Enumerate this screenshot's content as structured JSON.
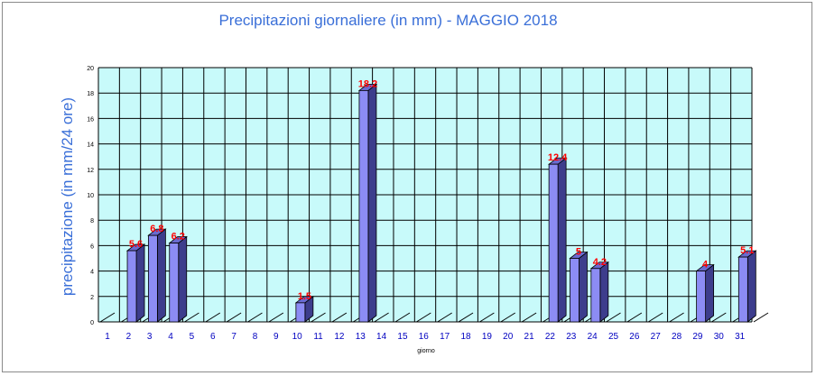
{
  "chart_data": {
    "type": "bar",
    "title": "Precipitazioni giornaliere (in mm) - MAGGIO 2018",
    "xlabel": "giorno",
    "ylabel": "precipitazione (in mm/24 ore)",
    "ylim": [
      0,
      20
    ],
    "yticks": [
      "0",
      "2",
      "4",
      "6",
      "8",
      "10",
      "12",
      "14",
      "16",
      "18",
      "20"
    ],
    "categories": [
      "1",
      "2",
      "3",
      "4",
      "5",
      "6",
      "7",
      "8",
      "9",
      "10",
      "11",
      "12",
      "13",
      "14",
      "15",
      "16",
      "17",
      "18",
      "19",
      "20",
      "21",
      "22",
      "23",
      "24",
      "25",
      "26",
      "27",
      "28",
      "29",
      "30",
      "31"
    ],
    "values": [
      null,
      5.6,
      6.8,
      6.2,
      null,
      null,
      null,
      null,
      null,
      1.5,
      null,
      null,
      18.2,
      null,
      null,
      null,
      null,
      null,
      null,
      null,
      null,
      12.4,
      5,
      4.2,
      null,
      null,
      null,
      null,
      4,
      null,
      5.1
    ],
    "value_labels": [
      "",
      "5.6",
      "6.8",
      "6.2",
      "",
      "",
      "",
      "",
      "",
      "1.5",
      "",
      "",
      "18.2",
      "",
      "",
      "",
      "",
      "",
      "",
      "",
      "",
      "12.4",
      "5",
      "4.2",
      "",
      "",
      "",
      "",
      "4",
      "",
      "5.1"
    ],
    "grid": true,
    "legend": "none",
    "colors": {
      "plot_bg": "#c8fafa",
      "bar_front": "#8c8cf4",
      "bar_side": "#3d3d8c",
      "bar_top": "#6a6ad0",
      "value_label": "#ff0000",
      "title": "#3a6fd8",
      "x_tick_label": "#0000c0",
      "grid": "#000000"
    }
  }
}
